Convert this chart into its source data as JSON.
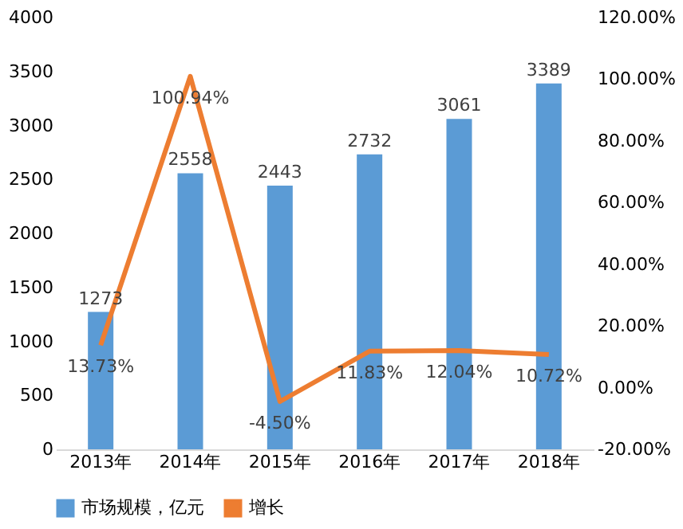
{
  "chart_data": {
    "type": "bar",
    "categories": [
      "2013年",
      "2014年",
      "2015年",
      "2016年",
      "2017年",
      "2018年"
    ],
    "series": [
      {
        "name": "市场规模，亿元",
        "color": "#5b9bd5",
        "values": [
          1273,
          2558,
          2443,
          2732,
          3061,
          3389
        ],
        "value_labels": [
          "1273",
          "2558",
          "2443",
          "2732",
          "3061",
          "3389"
        ]
      },
      {
        "name": "增长",
        "type": "line",
        "axis": "y2",
        "color": "#ed7d31",
        "values": [
          13.73,
          100.94,
          -4.5,
          11.83,
          12.04,
          10.72
        ],
        "value_labels": [
          "13.73%",
          "100.94%",
          "-4.50%",
          "11.83%",
          "12.04%",
          "10.72%"
        ]
      }
    ],
    "ylim": [
      0,
      4000
    ],
    "yticks": [
      0,
      500,
      1000,
      1500,
      2000,
      2500,
      3000,
      3500,
      4000
    ],
    "y2lim": [
      -20,
      120
    ],
    "y2ticks": [
      {
        "value": -20,
        "label": "-20.00%"
      },
      {
        "value": 0,
        "label": "0.00%"
      },
      {
        "value": 20,
        "label": "20.00%"
      },
      {
        "value": 40,
        "label": "40.00%"
      },
      {
        "value": 60,
        "label": "60.00%"
      },
      {
        "value": 80,
        "label": "80.00%"
      },
      {
        "value": 100,
        "label": "100.00%"
      },
      {
        "value": 120,
        "label": "120.00%"
      }
    ],
    "legend": "bottom",
    "grid": false,
    "line_style": "solid",
    "marker": "none"
  }
}
